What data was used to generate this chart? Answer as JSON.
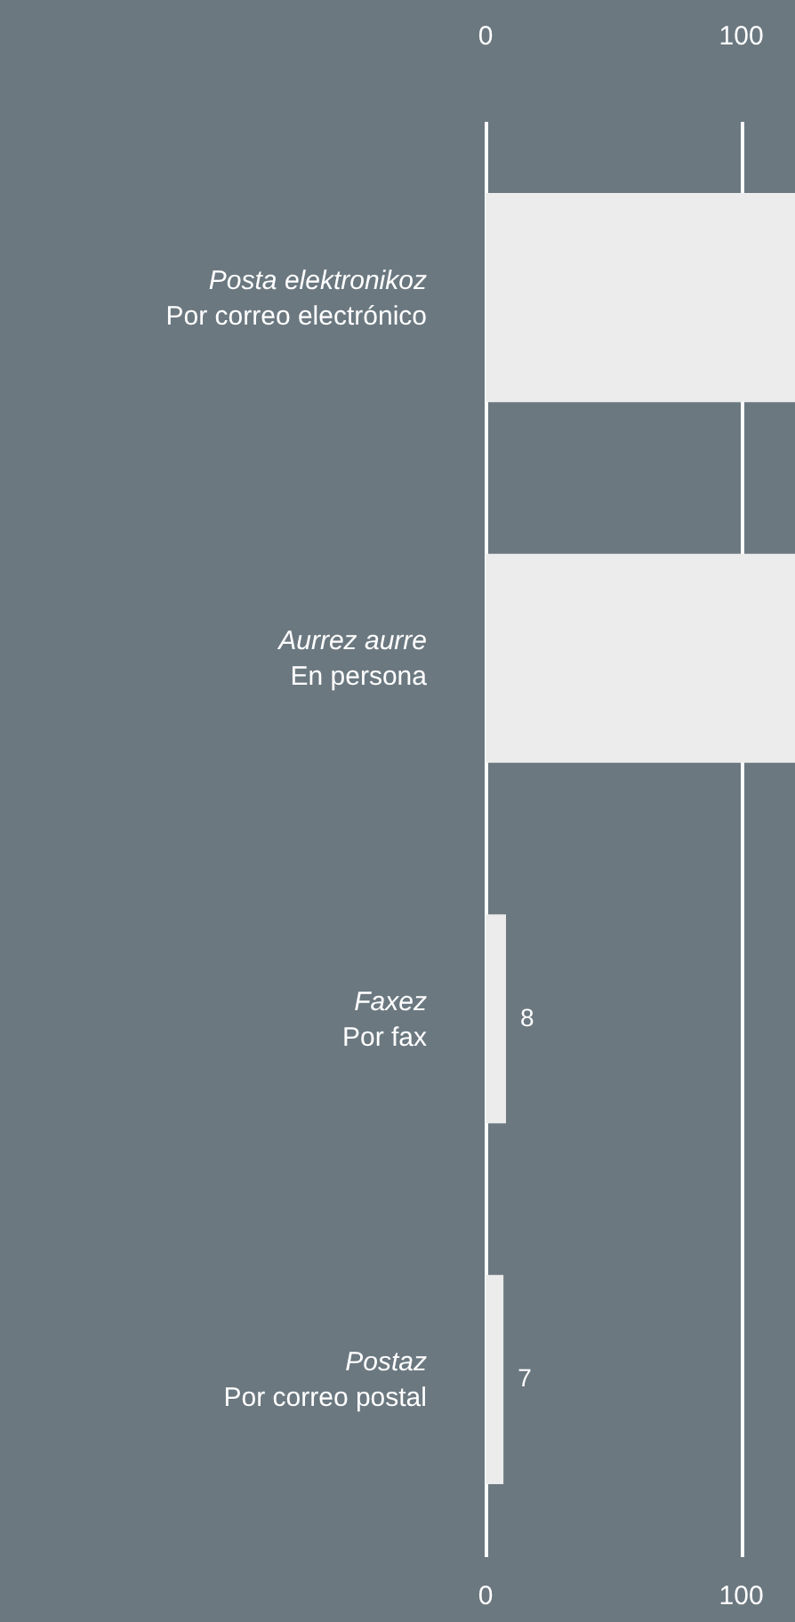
{
  "chart_data": {
    "type": "bar",
    "orientation": "horizontal",
    "categories": [
      "Posta elektronikoz\nPor correo electrónico",
      "Aurrez aurre\nEn persona",
      "Faxez\nPor fax",
      "Postaz\nPor correo postal"
    ],
    "values": [
      121,
      121,
      8,
      7
    ],
    "value_labels": [
      null,
      null,
      "8",
      "7"
    ],
    "color": "#ececec",
    "xlim": [
      0,
      121
    ],
    "xticks": [
      0,
      100
    ],
    "x2lim": [
      0,
      121
    ],
    "x2ticks": [
      0,
      100
    ],
    "grid": "x"
  }
}
